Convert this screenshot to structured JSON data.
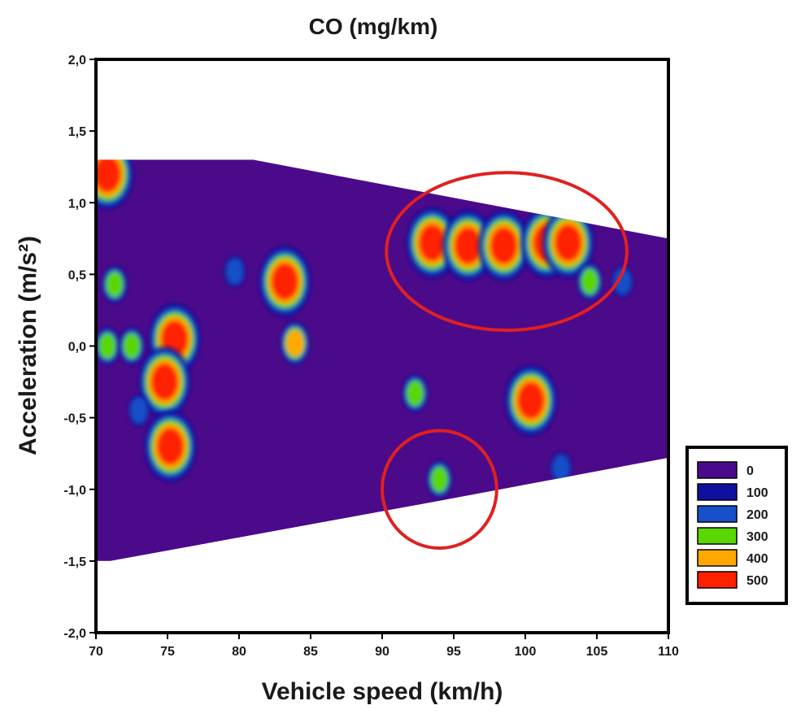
{
  "chart_data": {
    "type": "heatmap",
    "title": "CO (mg/km)",
    "xlabel": "Vehicle speed (km/h)",
    "ylabel": "Acceleration (m/s²)",
    "xlim": [
      70,
      110
    ],
    "ylim": [
      -2.0,
      2.0
    ],
    "x_ticks": [
      70,
      75,
      80,
      85,
      90,
      95,
      100,
      105,
      110
    ],
    "x_tick_labels": [
      "70",
      "75",
      "80",
      "85",
      "90",
      "95",
      "100",
      "105",
      "110"
    ],
    "y_ticks": [
      2.0,
      1.5,
      1.0,
      0.5,
      0.0,
      -0.5,
      -1.0,
      -1.5,
      -2.0
    ],
    "y_tick_labels": [
      "2,0",
      "1,5",
      "1,0",
      "0,5",
      "0,0",
      "-0,5",
      "-1,0",
      "-1,5",
      "-2,0"
    ],
    "grid": false,
    "legend_position": "right",
    "colorbar": [
      {
        "label": "0",
        "color": "#4b0a8a"
      },
      {
        "label": "100",
        "color": "#1010a0"
      },
      {
        "label": "200",
        "color": "#1750c8"
      },
      {
        "label": "300",
        "color": "#5ad700"
      },
      {
        "label": "400",
        "color": "#ffa800"
      },
      {
        "label": "500",
        "color": "#ff2000"
      }
    ],
    "data_region": [
      [
        70,
        1.3
      ],
      [
        81,
        1.3
      ],
      [
        110,
        0.75
      ],
      [
        110,
        -0.78
      ],
      [
        94,
        -1.08
      ],
      [
        71,
        -1.5
      ],
      [
        70,
        -1.5
      ]
    ],
    "hotspots": [
      {
        "x": 70.8,
        "y": 1.2,
        "level": 500
      },
      {
        "x": 75.5,
        "y": 0.05,
        "level": 500
      },
      {
        "x": 74.8,
        "y": -0.25,
        "level": 500
      },
      {
        "x": 75.2,
        "y": -0.7,
        "level": 500
      },
      {
        "x": 83.2,
        "y": 0.45,
        "level": 500
      },
      {
        "x": 83.9,
        "y": 0.02,
        "level": 400
      },
      {
        "x": 93.5,
        "y": 0.72,
        "level": 500
      },
      {
        "x": 96.0,
        "y": 0.7,
        "level": 500
      },
      {
        "x": 98.5,
        "y": 0.7,
        "level": 500
      },
      {
        "x": 101.5,
        "y": 0.72,
        "level": 500
      },
      {
        "x": 103.0,
        "y": 0.72,
        "level": 500
      },
      {
        "x": 100.4,
        "y": -0.38,
        "level": 500
      },
      {
        "x": 94.0,
        "y": -0.93,
        "level": 300
      },
      {
        "x": 71.3,
        "y": 0.43,
        "level": 300
      },
      {
        "x": 70.8,
        "y": 0.0,
        "level": 300
      },
      {
        "x": 72.5,
        "y": 0.0,
        "level": 300
      },
      {
        "x": 79.7,
        "y": 0.52,
        "level": 200
      },
      {
        "x": 92.3,
        "y": -0.33,
        "level": 300
      },
      {
        "x": 104.5,
        "y": 0.45,
        "level": 300
      },
      {
        "x": 106.8,
        "y": 0.45,
        "level": 200
      },
      {
        "x": 73.0,
        "y": -0.45,
        "level": 200
      },
      {
        "x": 102.5,
        "y": -0.85,
        "level": 200
      }
    ],
    "annotations": [
      {
        "type": "ellipse",
        "cx": 98.7,
        "cy": 0.66,
        "rx": 8.4,
        "ry": 0.55,
        "color": "#e02020"
      },
      {
        "type": "ellipse",
        "cx": 94.0,
        "cy": -1.0,
        "rx": 4.0,
        "ry": 0.41,
        "color": "#e02020"
      }
    ]
  }
}
